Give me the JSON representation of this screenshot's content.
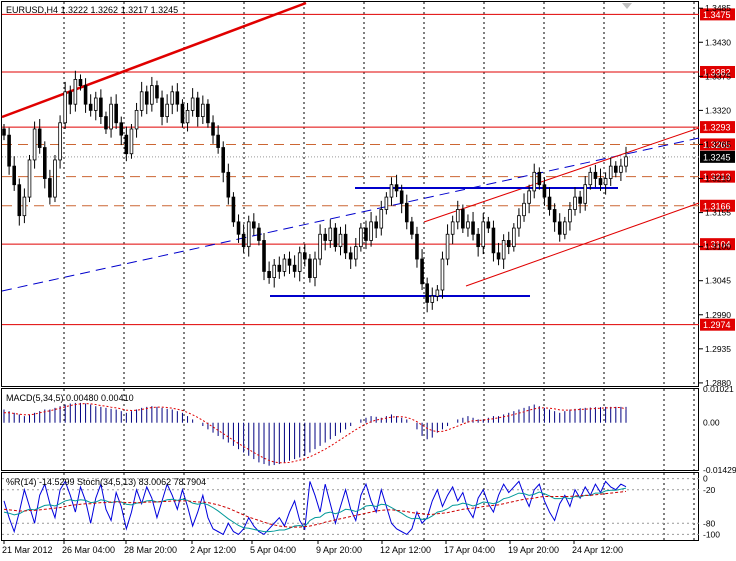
{
  "chart_data": [
    {
      "type": "candlestick",
      "symbol_info": "EURUSD,H4  1.3222 1.3262 1.3217 1.3245",
      "ylim": [
        1.2875,
        1.3495
      ],
      "y_ticks": [
        "1.3485",
        "1.3430",
        "1.3375",
        "1.3320",
        "1.3265",
        "1.3210",
        "1.3155",
        "1.3100",
        "1.3045",
        "1.2990",
        "1.2935",
        "1.2880"
      ],
      "x_labels": [
        "21 Mar 2012",
        "26 Mar 04:00",
        "28 Mar 20:00",
        "2 Apr 12:00",
        "5 Apr 04:00",
        "9 Apr 20:00",
        "12 Apr 12:00",
        "17 Apr 04:00",
        "19 Apr 20:00",
        "24 Apr 12:00"
      ],
      "levels": [
        {
          "label": "1.3475",
          "value": 1.3475,
          "style": "solid"
        },
        {
          "label": "1.3382",
          "value": 1.3382,
          "style": "solid"
        },
        {
          "label": "1.3293",
          "value": 1.3293,
          "style": "solid"
        },
        {
          "label": "1.3265",
          "value": 1.3265,
          "style": "dashed"
        },
        {
          "label": "1.3213",
          "value": 1.3213,
          "style": "dashed"
        },
        {
          "label": "1.3166",
          "value": 1.3166,
          "style": "dashed"
        },
        {
          "label": "1.3104",
          "value": 1.3104,
          "style": "solid"
        },
        {
          "label": "1.2974",
          "value": 1.2974,
          "style": "solid"
        }
      ],
      "current_price": {
        "label": "1.3245",
        "value": 1.3245
      },
      "closes": [
        1.328,
        1.323,
        1.32,
        1.315,
        1.318,
        1.324,
        1.329,
        1.326,
        1.321,
        1.318,
        1.324,
        1.33,
        1.335,
        1.333,
        1.337,
        1.336,
        1.333,
        1.332,
        1.334,
        1.331,
        1.329,
        1.333,
        1.33,
        1.328,
        1.325,
        1.329,
        1.332,
        1.335,
        1.333,
        1.336,
        1.334,
        1.331,
        1.333,
        1.335,
        1.333,
        1.33,
        1.332,
        1.334,
        1.331,
        1.333,
        1.33,
        1.328,
        1.326,
        1.322,
        1.318,
        1.314,
        1.312,
        1.31,
        1.314,
        1.313,
        1.311,
        1.306,
        1.305,
        1.307,
        1.306,
        1.308,
        1.307,
        1.306,
        1.309,
        1.308,
        1.305,
        1.308,
        1.312,
        1.311,
        1.313,
        1.31,
        1.312,
        1.309,
        1.308,
        1.31,
        1.313,
        1.311,
        1.314,
        1.313,
        1.316,
        1.318,
        1.32,
        1.319,
        1.317,
        1.314,
        1.312,
        1.308,
        1.304,
        1.301,
        1.302,
        1.303,
        1.308,
        1.312,
        1.314,
        1.316,
        1.313,
        1.314,
        1.312,
        1.31,
        1.314,
        1.313,
        1.309,
        1.308,
        1.311,
        1.31,
        1.313,
        1.315,
        1.317,
        1.319,
        1.322,
        1.32,
        1.318,
        1.316,
        1.314,
        1.312,
        1.314,
        1.316,
        1.318,
        1.317,
        1.32,
        1.322,
        1.321,
        1.32,
        1.321,
        1.323,
        1.322,
        1.323,
        1.3245
      ]
    },
    {
      "type": "histogram",
      "label": "MACD(5,34,5) 0.00480 0.00410",
      "ylim": [
        -0.0143,
        0.0102
      ],
      "y_ticks": [
        "0.01021",
        "0.00",
        "-0.01429"
      ],
      "values": [
        0.004,
        0.0035,
        0.003,
        0.0025,
        0.002,
        0.0025,
        0.003,
        0.0035,
        0.004,
        0.004,
        0.0045,
        0.005,
        0.0055,
        0.0058,
        0.006,
        0.006,
        0.0058,
        0.0055,
        0.005,
        0.0048,
        0.0045,
        0.0042,
        0.004,
        0.0035,
        0.003,
        0.0035,
        0.004,
        0.0045,
        0.0048,
        0.005,
        0.0048,
        0.0045,
        0.0042,
        0.004,
        0.0035,
        0.003,
        0.002,
        0.001,
        0.0,
        -0.001,
        -0.002,
        -0.003,
        -0.004,
        -0.005,
        -0.006,
        -0.007,
        -0.008,
        -0.009,
        -0.01,
        -0.011,
        -0.012,
        -0.0125,
        -0.013,
        -0.0128,
        -0.0125,
        -0.012,
        -0.0115,
        -0.011,
        -0.0105,
        -0.01,
        -0.009,
        -0.008,
        -0.007,
        -0.006,
        -0.005,
        -0.004,
        -0.003,
        -0.002,
        -0.001,
        0.0,
        0.001,
        0.0015,
        0.002,
        0.0018,
        0.0015,
        0.002,
        0.0025,
        0.002,
        0.0015,
        0.001,
        0.0,
        -0.002,
        -0.004,
        -0.005,
        -0.0045,
        -0.003,
        -0.002,
        -0.001,
        0.0,
        0.001,
        0.0015,
        0.002,
        0.0015,
        0.001,
        0.001,
        0.0015,
        0.002,
        0.002,
        0.0025,
        0.003,
        0.0035,
        0.004,
        0.0045,
        0.005,
        0.0055,
        0.005,
        0.0045,
        0.004,
        0.0035,
        0.003,
        0.0035,
        0.004,
        0.0042,
        0.0044,
        0.0045,
        0.0046,
        0.0047,
        0.0047,
        0.0048,
        0.0048,
        0.0048,
        0.0048,
        0.0048
      ],
      "signal": [
        0.003,
        0.003,
        0.0028,
        0.0026,
        0.0024,
        0.0024,
        0.0026,
        0.003,
        0.0033,
        0.0036,
        0.004,
        0.0044,
        0.0048,
        0.0052,
        0.0055,
        0.0057,
        0.0058,
        0.0057,
        0.0055,
        0.0052,
        0.005,
        0.0047,
        0.0045,
        0.0042,
        0.0038,
        0.0037,
        0.0038,
        0.004,
        0.0043,
        0.0046,
        0.0047,
        0.0047,
        0.0046,
        0.0044,
        0.0041,
        0.0037,
        0.0031,
        0.0024,
        0.0016,
        0.0007,
        -0.0003,
        -0.0013,
        -0.0023,
        -0.0033,
        -0.0043,
        -0.0053,
        -0.0063,
        -0.0072,
        -0.0081,
        -0.009,
        -0.0099,
        -0.0107,
        -0.0114,
        -0.0119,
        -0.0121,
        -0.0121,
        -0.012,
        -0.0117,
        -0.0113,
        -0.0109,
        -0.0103,
        -0.0096,
        -0.0088,
        -0.008,
        -0.0071,
        -0.0061,
        -0.0051,
        -0.0041,
        -0.0031,
        -0.0021,
        -0.0012,
        -0.0004,
        0.0003,
        0.0008,
        0.0011,
        0.0014,
        0.0017,
        0.0018,
        0.0018,
        0.0016,
        0.0011,
        0.0003,
        -0.0007,
        -0.0017,
        -0.0024,
        -0.0027,
        -0.0026,
        -0.0022,
        -0.0016,
        -0.001,
        -0.0004,
        0.0002,
        0.0006,
        0.0007,
        0.0008,
        0.001,
        0.0012,
        0.0015,
        0.0018,
        0.0021,
        0.0025,
        0.0029,
        0.0033,
        0.0038,
        0.0042,
        0.0045,
        0.0045,
        0.0044,
        0.0042,
        0.0039,
        0.0038,
        0.0038,
        0.0039,
        0.004,
        0.0041,
        0.0042,
        0.0043,
        0.0044,
        0.0045,
        0.0045,
        0.0046,
        0.0046,
        0.0041
      ]
    },
    {
      "type": "line",
      "label": "%R(14) -14.5299  Stoch(34,5,13) 83.0062 78.7904",
      "ylim": [
        -110,
        10
      ],
      "y_ticks": [
        "0",
        "-20",
        "-80",
        "-100"
      ],
      "series": [
        {
          "values": [
            -40,
            -70,
            -95,
            -60,
            -20,
            -50,
            -80,
            -30,
            -10,
            -45,
            -70,
            -20,
            -5,
            -30,
            -60,
            -15,
            -40,
            -80,
            -35,
            -10,
            -55,
            -75,
            -25,
            -50,
            -90,
            -60,
            -20,
            -45,
            -15,
            -35,
            -70,
            -40,
            -10,
            -30,
            -55,
            -20,
            -50,
            -85,
            -60,
            -30,
            -70,
            -90,
            -95,
            -100,
            -80,
            -95,
            -100,
            -90,
            -70,
            -85,
            -95,
            -100,
            -90,
            -80,
            -70,
            -85,
            -60,
            -40,
            -75,
            -90,
            -5,
            -30,
            -60,
            -10,
            -45,
            -80,
            -50,
            -20,
            -55,
            -75,
            -30,
            -10,
            -40,
            -60,
            -20,
            -50,
            -80,
            -90,
            -95,
            -100,
            -90,
            -60,
            -80,
            -70,
            -40,
            -20,
            -50,
            -30,
            -15,
            -40,
            -25,
            -55,
            -70,
            -35,
            -20,
            -45,
            -60,
            -30,
            -10,
            -25,
            -15,
            -5,
            -30,
            -50,
            -20,
            -10,
            -40,
            -60,
            -75,
            -45,
            -30,
            -50,
            -20,
            -35,
            -15,
            -30,
            -10,
            -25,
            -5,
            -15,
            -20,
            -10,
            -14.5
          ]
        },
        {
          "values": [
            -60,
            -62,
            -65,
            -63,
            -58,
            -55,
            -56,
            -52,
            -48,
            -47,
            -49,
            -45,
            -40,
            -38,
            -40,
            -38,
            -39,
            -43,
            -42,
            -38,
            -40,
            -43,
            -41,
            -42,
            -46,
            -47,
            -44,
            -43,
            -40,
            -39,
            -42,
            -41,
            -38,
            -37,
            -39,
            -37,
            -39,
            -44,
            -46,
            -44,
            -47,
            -52,
            -58,
            -65,
            -72,
            -78,
            -84,
            -88,
            -89,
            -91,
            -93,
            -95,
            -95,
            -94,
            -92,
            -92,
            -89,
            -85,
            -84,
            -86,
            -75,
            -70,
            -69,
            -62,
            -60,
            -63,
            -60,
            -55,
            -56,
            -59,
            -55,
            -49,
            -48,
            -50,
            -46,
            -47,
            -52,
            -57,
            -62,
            -68,
            -72,
            -71,
            -73,
            -72,
            -67,
            -60,
            -58,
            -54,
            -48,
            -47,
            -44,
            -46,
            -49,
            -46,
            -42,
            -43,
            -45,
            -42,
            -36,
            -34,
            -30,
            -26,
            -27,
            -30,
            -28,
            -24,
            -27,
            -31,
            -36,
            -36,
            -34,
            -36,
            -32,
            -33,
            -30,
            -30,
            -26,
            -26,
            -22,
            -21,
            -21,
            -19,
            -17
          ]
        },
        {
          "values": [
            -55,
            -56,
            -57,
            -58,
            -58,
            -57,
            -57,
            -56,
            -55,
            -54,
            -53,
            -52,
            -50,
            -48,
            -47,
            -46,
            -45,
            -45,
            -44,
            -43,
            -43,
            -42,
            -42,
            -42,
            -43,
            -43,
            -43,
            -43,
            -42,
            -42,
            -42,
            -41,
            -41,
            -40,
            -40,
            -40,
            -40,
            -41,
            -42,
            -42,
            -43,
            -45,
            -47,
            -50,
            -53,
            -57,
            -61,
            -65,
            -69,
            -72,
            -75,
            -78,
            -81,
            -83,
            -85,
            -86,
            -87,
            -87,
            -87,
            -86,
            -85,
            -83,
            -81,
            -78,
            -76,
            -74,
            -72,
            -70,
            -68,
            -66,
            -64,
            -62,
            -60,
            -58,
            -57,
            -56,
            -56,
            -57,
            -58,
            -59,
            -61,
            -62,
            -63,
            -64,
            -64,
            -63,
            -62,
            -61,
            -59,
            -57,
            -55,
            -54,
            -53,
            -52,
            -50,
            -49,
            -48,
            -47,
            -45,
            -43,
            -41,
            -39,
            -37,
            -36,
            -35,
            -33,
            -32,
            -32,
            -32,
            -32,
            -32,
            -32,
            -31,
            -31,
            -30,
            -30,
            -29,
            -28,
            -27,
            -26,
            -25,
            -24,
            -23
          ]
        }
      ]
    }
  ]
}
